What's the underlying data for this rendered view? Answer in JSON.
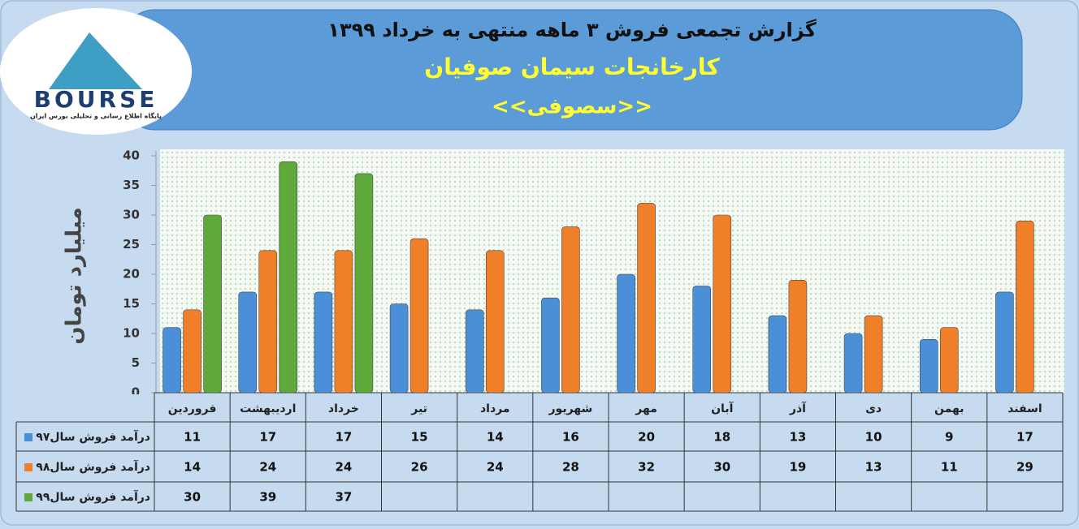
{
  "logo": {
    "text": "BOURSE",
    "subtitle": "پایگاه اطلاع رسانی و تحلیلی بورس ایران"
  },
  "chart_data": {
    "type": "bar",
    "title": "گزارش تجمعی فروش  ۳ ماهه منتهی به خرداد ۱۳۹۹",
    "subtitle": "کارخانجات سیمان صوفیان",
    "symbol": "<<سصوفی>>",
    "y_label": "میلیارد تومان",
    "categories": [
      "فروردین",
      "اردیبهشت",
      "خرداد",
      "تیر",
      "مرداد",
      "شهریور",
      "مهر",
      "آبان",
      "آذر",
      "دی",
      "بهمن",
      "اسفند"
    ],
    "series": [
      {
        "name": "درآمد فروش سال۹۷",
        "color": "#4a8fd8",
        "values": [
          11,
          17,
          17,
          15,
          14,
          16,
          20,
          18,
          13,
          10,
          9,
          17
        ]
      },
      {
        "name": "درآمد فروش سال۹۸",
        "color": "#f07f2a",
        "values": [
          14,
          24,
          24,
          26,
          24,
          28,
          32,
          30,
          19,
          13,
          11,
          29
        ]
      },
      {
        "name": "درآمد فروش سال۹۹",
        "color": "#5fa83a",
        "values": [
          30,
          39,
          37,
          null,
          null,
          null,
          null,
          null,
          null,
          null,
          null,
          null
        ]
      }
    ],
    "ylim": [
      0,
      40
    ],
    "yticks": [
      0,
      5,
      10,
      15,
      20,
      25,
      30,
      35,
      40
    ]
  }
}
